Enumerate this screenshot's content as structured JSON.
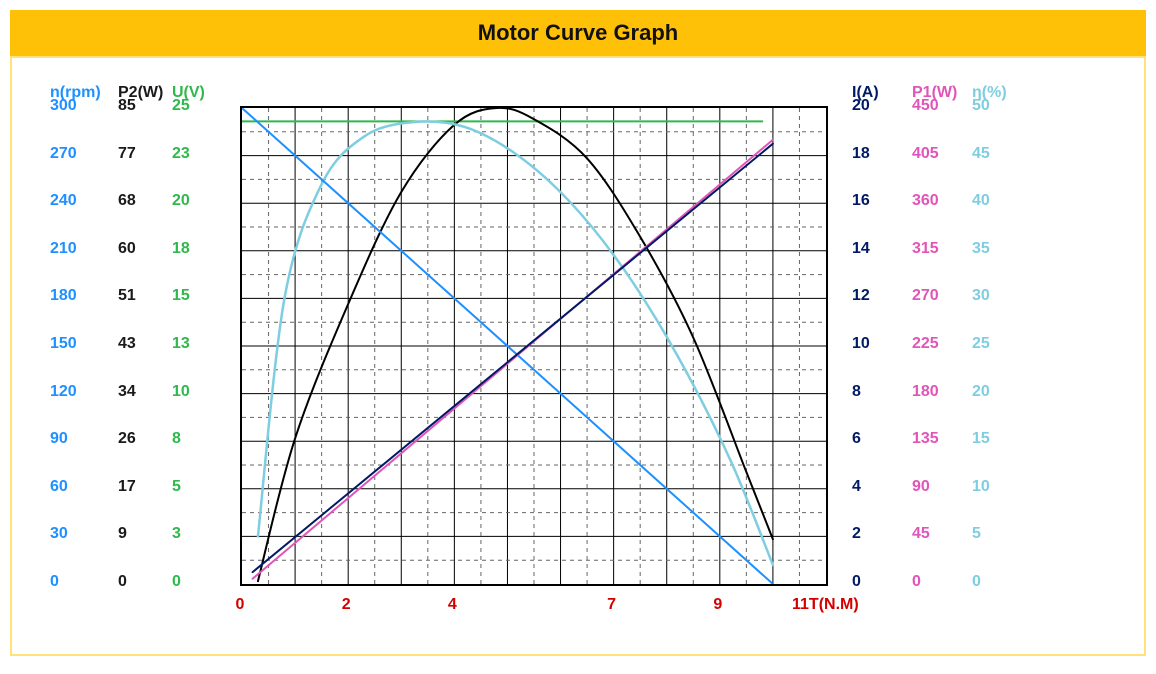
{
  "title": "Motor Curve Graph",
  "colors": {
    "title_bg": "#ffc107",
    "frame_border": "#ffe27a",
    "grid_major": "#000000",
    "grid_minor": "#666666",
    "n_rpm": "#1e90ff",
    "p2": "#1a1a1a",
    "u": "#2fb84c",
    "i": "#001a66",
    "p1": "#e055b8",
    "eff": "#7fcde0",
    "xaxis": "#d40000"
  },
  "plot": {
    "x_ticks": [
      0,
      1,
      2,
      3,
      4,
      5,
      6,
      7,
      8,
      9,
      10,
      11
    ],
    "x_labels_shown": {
      "0": "0",
      "2": "2",
      "4": "4",
      "7": "7",
      "9": "9",
      "11": "11T(N.M)"
    },
    "xlim": [
      0,
      11
    ],
    "y_rows": 10,
    "grid_major_step_x": 1,
    "grid_minor_per_cell": 1
  },
  "left_axes": {
    "n_rpm": {
      "header": "n(rpm)",
      "values": [
        "300",
        "270",
        "240",
        "210",
        "180",
        "150",
        "120",
        "90",
        "60",
        "30",
        "0"
      ],
      "color": "#1e90ff"
    },
    "p2": {
      "header": "P2(W)",
      "values": [
        "85",
        "77",
        "68",
        "60",
        "51",
        "43",
        "34",
        "26",
        "17",
        "9",
        "0"
      ],
      "color": "#1a1a1a"
    },
    "u": {
      "header": "U(V)",
      "values": [
        "25",
        "23",
        "20",
        "18",
        "15",
        "13",
        "10",
        "8",
        "5",
        "3",
        "0"
      ],
      "color": "#2fb84c"
    }
  },
  "right_axes": {
    "i": {
      "header": "I(A)",
      "values": [
        "20",
        "18",
        "16",
        "14",
        "12",
        "10",
        "8",
        "6",
        "4",
        "2",
        "0"
      ],
      "color": "#001a66"
    },
    "p1": {
      "header": "P1(W)",
      "values": [
        "450",
        "405",
        "360",
        "315",
        "270",
        "225",
        "180",
        "135",
        "90",
        "45",
        "0"
      ],
      "color": "#e055b8"
    },
    "eff": {
      "header": "η(%)",
      "values": [
        "50",
        "45",
        "40",
        "35",
        "30",
        "25",
        "20",
        "15",
        "10",
        "5",
        "0"
      ],
      "color": "#7fcde0"
    }
  },
  "series": {
    "n_rpm": {
      "color": "#1e90ff",
      "width": 2,
      "type": "line",
      "points": [
        [
          0,
          300
        ],
        [
          10,
          0
        ]
      ]
    },
    "u": {
      "color": "#2fb84c",
      "width": 2,
      "type": "line",
      "points": [
        [
          0,
          24.3
        ],
        [
          9.8,
          24.3
        ]
      ]
    },
    "i": {
      "color": "#001a66",
      "width": 2,
      "type": "line",
      "points": [
        [
          0.2,
          0.5
        ],
        [
          10,
          18.5
        ]
      ]
    },
    "p1": {
      "color": "#e055b8",
      "width": 2,
      "type": "line",
      "points": [
        [
          0.2,
          5
        ],
        [
          10,
          420
        ]
      ]
    },
    "p2": {
      "color": "#000000",
      "width": 2,
      "type": "curve",
      "points": [
        [
          0.3,
          0.5
        ],
        [
          1,
          26
        ],
        [
          2,
          50
        ],
        [
          3,
          70
        ],
        [
          4,
          82
        ],
        [
          4.8,
          85
        ],
        [
          5.5,
          83
        ],
        [
          6.5,
          76
        ],
        [
          7.5,
          62
        ],
        [
          8.5,
          44
        ],
        [
          9.5,
          20
        ],
        [
          10,
          8
        ]
      ]
    },
    "eff": {
      "color": "#7fcde0",
      "width": 2.5,
      "type": "curve",
      "points": [
        [
          0.3,
          5
        ],
        [
          0.8,
          30
        ],
        [
          1.5,
          42
        ],
        [
          2.3,
          47
        ],
        [
          3.2,
          48.5
        ],
        [
          4.2,
          48
        ],
        [
          5.2,
          45
        ],
        [
          6.2,
          40
        ],
        [
          7.2,
          33
        ],
        [
          8.2,
          24
        ],
        [
          9.2,
          13
        ],
        [
          10,
          2
        ]
      ]
    }
  },
  "scales": {
    "n_rpm": [
      0,
      300
    ],
    "p2": [
      0,
      85
    ],
    "u": [
      0,
      25
    ],
    "i": [
      0,
      20
    ],
    "p1": [
      0,
      450
    ],
    "eff": [
      0,
      50
    ]
  },
  "typography": {
    "tick_fontsize": 16,
    "tick_fontweight": "700",
    "title_fontsize": 22
  }
}
